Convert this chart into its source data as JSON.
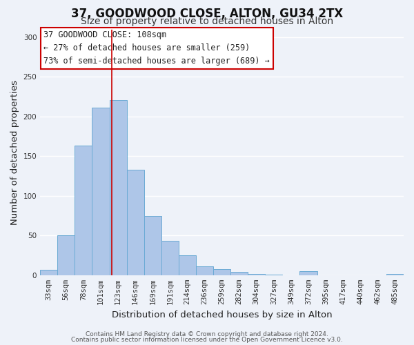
{
  "title": "37, GOODWOOD CLOSE, ALTON, GU34 2TX",
  "subtitle": "Size of property relative to detached houses in Alton",
  "xlabel": "Distribution of detached houses by size in Alton",
  "ylabel": "Number of detached properties",
  "bar_labels": [
    "33sqm",
    "56sqm",
    "78sqm",
    "101sqm",
    "123sqm",
    "146sqm",
    "169sqm",
    "191sqm",
    "214sqm",
    "236sqm",
    "259sqm",
    "282sqm",
    "304sqm",
    "327sqm",
    "349sqm",
    "372sqm",
    "395sqm",
    "417sqm",
    "440sqm",
    "462sqm",
    "485sqm"
  ],
  "bar_values": [
    7,
    50,
    163,
    211,
    221,
    133,
    75,
    43,
    25,
    11,
    8,
    4,
    2,
    1,
    0,
    5,
    0,
    0,
    0,
    0,
    2
  ],
  "bar_color": "#aec6e8",
  "bar_edge_color": "#6aaad4",
  "vline_x_index": 3.62,
  "vline_color": "#cc0000",
  "annotation_text_line1": "37 GOODWOOD CLOSE: 108sqm",
  "annotation_text_line2": "← 27% of detached houses are smaller (259)",
  "annotation_text_line3": "73% of semi-detached houses are larger (689) →",
  "ylim": [
    0,
    310
  ],
  "yticks": [
    0,
    50,
    100,
    150,
    200,
    250,
    300
  ],
  "footer_line1": "Contains HM Land Registry data © Crown copyright and database right 2024.",
  "footer_line2": "Contains public sector information licensed under the Open Government Licence v3.0.",
  "background_color": "#eef2f9",
  "grid_color": "#ffffff",
  "title_fontsize": 12,
  "subtitle_fontsize": 10,
  "axis_label_fontsize": 9.5,
  "tick_fontsize": 7.5,
  "annotation_fontsize": 8.5,
  "footer_fontsize": 6.5
}
